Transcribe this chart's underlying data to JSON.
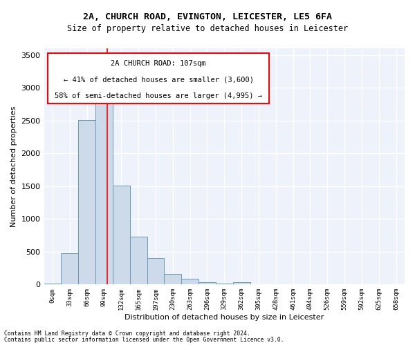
{
  "title_line1": "2A, CHURCH ROAD, EVINGTON, LEICESTER, LE5 6FA",
  "title_line2": "Size of property relative to detached houses in Leicester",
  "xlabel": "Distribution of detached houses by size in Leicester",
  "ylabel": "Number of detached properties",
  "bar_color": "#cddaea",
  "bar_edge_color": "#6699bb",
  "background_color": "#eef2fa",
  "grid_color": "#ffffff",
  "bin_labels": [
    "0sqm",
    "33sqm",
    "66sqm",
    "99sqm",
    "132sqm",
    "165sqm",
    "197sqm",
    "230sqm",
    "263sqm",
    "296sqm",
    "329sqm",
    "362sqm",
    "395sqm",
    "428sqm",
    "461sqm",
    "494sqm",
    "526sqm",
    "559sqm",
    "592sqm",
    "625sqm",
    "658sqm"
  ],
  "bar_heights": [
    15,
    475,
    2510,
    2820,
    1510,
    730,
    400,
    160,
    90,
    40,
    15,
    40,
    5,
    0,
    0,
    0,
    0,
    0,
    0,
    0,
    0
  ],
  "ylim": [
    0,
    3600
  ],
  "yticks": [
    0,
    500,
    1000,
    1500,
    2000,
    2500,
    3000,
    3500
  ],
  "property_label": "2A CHURCH ROAD: 107sqm",
  "annotation_line1": "← 41% of detached houses are smaller (3,600)",
  "annotation_line2": "58% of semi-detached houses are larger (4,995) →",
  "red_line_x": 3.18,
  "footnote_line1": "Contains HM Land Registry data © Crown copyright and database right 2024.",
  "footnote_line2": "Contains public sector information licensed under the Open Government Licence v3.0."
}
